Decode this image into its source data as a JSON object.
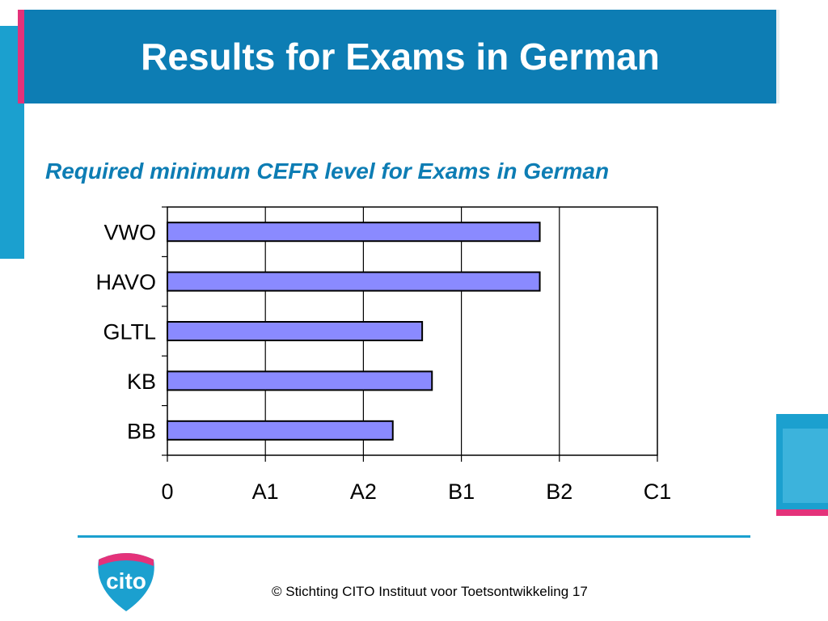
{
  "slide": {
    "title": "Results for Exams in German",
    "copyright": "© Stichting CITO Instituut voor Toetsontwikkeling 17",
    "logo_text": "cito"
  },
  "colors": {
    "title_bar": "#0d7db4",
    "accent_blue": "#1ba0cf",
    "accent_pink": "#e4327a",
    "bar_fill": "#8a8aff",
    "bar_stroke": "#000000"
  },
  "chart_data": {
    "type": "bar",
    "orientation": "horizontal",
    "title": "Required minimum CEFR level for Exams in German",
    "categories": [
      "VWO",
      "HAVO",
      "GLTL",
      "KB",
      "BB"
    ],
    "x_ticks": [
      "0",
      "A1",
      "A2",
      "B1",
      "B2",
      "C1"
    ],
    "values": [
      3.8,
      3.8,
      2.6,
      2.7,
      2.3
    ],
    "xlim": [
      0,
      5
    ],
    "grid": "vertical",
    "legend": "none"
  }
}
